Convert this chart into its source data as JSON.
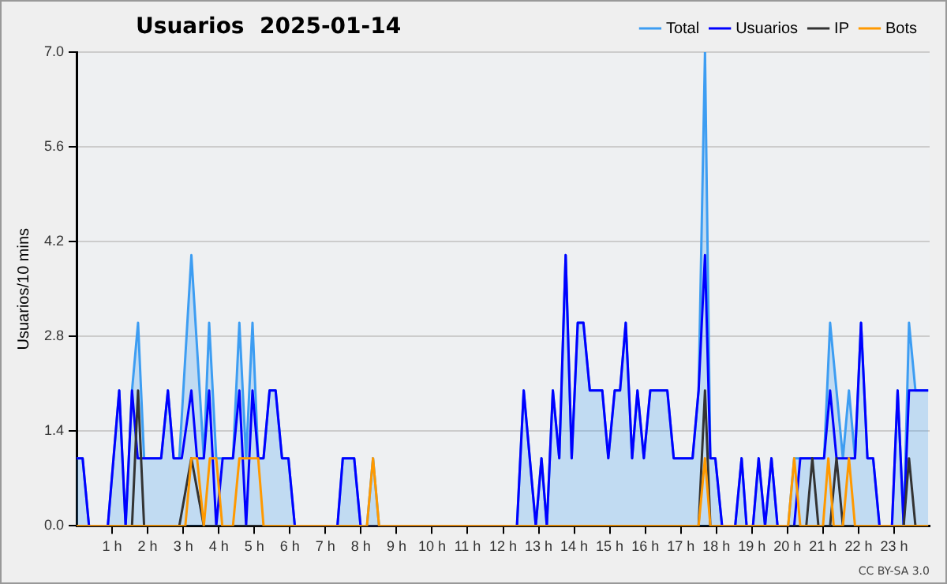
{
  "chart_data": {
    "type": "line",
    "title": "Usuarios  2025-01-14",
    "ylabel": "Usuarios/10 mins",
    "annotations": [
      "CC BY-SA 3.0"
    ],
    "xlim": [
      0,
      24
    ],
    "ylim": [
      0,
      7
    ],
    "xticks": [
      {
        "value": 1,
        "label": "1 h"
      },
      {
        "value": 2,
        "label": "2 h"
      },
      {
        "value": 3,
        "label": "3 h"
      },
      {
        "value": 4,
        "label": "4 h"
      },
      {
        "value": 5,
        "label": "5 h"
      },
      {
        "value": 6,
        "label": "6 h"
      },
      {
        "value": 7,
        "label": "7 h"
      },
      {
        "value": 8,
        "label": "8 h"
      },
      {
        "value": 9,
        "label": "9 h"
      },
      {
        "value": 10,
        "label": "10 h"
      },
      {
        "value": 11,
        "label": "11 h"
      },
      {
        "value": 12,
        "label": "12 h"
      },
      {
        "value": 13,
        "label": "13 h"
      },
      {
        "value": 14,
        "label": "14 h"
      },
      {
        "value": 15,
        "label": "15 h"
      },
      {
        "value": 16,
        "label": "16 h"
      },
      {
        "value": 17,
        "label": "17 h"
      },
      {
        "value": 18,
        "label": "18 h"
      },
      {
        "value": 19,
        "label": "19 h"
      },
      {
        "value": 20,
        "label": "20 h"
      },
      {
        "value": 21,
        "label": "21 h"
      },
      {
        "value": 22,
        "label": "22 h"
      },
      {
        "value": 23,
        "label": "23 h"
      }
    ],
    "yticks": [
      {
        "value": 0,
        "label": "0.0"
      },
      {
        "value": 1.4,
        "label": "1.4"
      },
      {
        "value": 2.8,
        "label": "2.8"
      },
      {
        "value": 4.2,
        "label": "4.2"
      },
      {
        "value": 5.6,
        "label": "5.6"
      },
      {
        "value": 7,
        "label": "7.0"
      }
    ],
    "grid": "y",
    "legend": "top right",
    "marker": "none",
    "line_style": "solid",
    "series": [
      {
        "name": "Total",
        "type": "area",
        "color": "#3d9df2",
        "x": [
          0,
          0.17,
          0.35,
          0.88,
          1.2,
          1.38,
          1.56,
          1.73,
          1.9,
          2.38,
          2.57,
          2.73,
          2.89,
          3.23,
          3.58,
          3.73,
          3.93,
          4.11,
          4.4,
          4.58,
          4.77,
          4.95,
          5.11,
          5.26,
          5.43,
          5.6,
          5.78,
          5.96,
          6.14,
          7.34,
          7.49,
          7.81,
          7.99,
          8.17,
          8.34,
          8.51,
          12.39,
          12.58,
          12.92,
          13.08,
          13.23,
          13.4,
          13.58,
          13.76,
          13.93,
          14.1,
          14.26,
          14.44,
          14.79,
          14.96,
          15.14,
          15.29,
          15.45,
          15.63,
          15.78,
          15.96,
          16.14,
          16.62,
          16.8,
          17.33,
          17.5,
          17.68,
          17.83,
          17.97,
          18.16,
          18.53,
          18.71,
          18.85,
          19.03,
          19.19,
          19.37,
          19.55,
          19.72,
          20.02,
          20.19,
          21.03,
          21.2,
          21.38,
          21.56,
          21.73,
          21.9,
          22.07,
          22.25,
          22.41,
          22.59,
          22.94,
          23.1,
          23.27,
          23.42,
          23.6,
          23.96
        ],
        "values": [
          1,
          1,
          0,
          0,
          2,
          0,
          2,
          3,
          1,
          1,
          2,
          1,
          1,
          4,
          1,
          3,
          1,
          1,
          1,
          3,
          1,
          3,
          1,
          1,
          2,
          2,
          1,
          1,
          0,
          0,
          1,
          1,
          0,
          0,
          1,
          0,
          0,
          2,
          0,
          1,
          0,
          2,
          1,
          4,
          1,
          3,
          3,
          2,
          2,
          1,
          2,
          2,
          3,
          1,
          2,
          1,
          2,
          2,
          1,
          1,
          2,
          7,
          1,
          1,
          0,
          0,
          1,
          0,
          0,
          1,
          0,
          1,
          0,
          0,
          1,
          1,
          3,
          2,
          1,
          2,
          1,
          3,
          1,
          1,
          0,
          0,
          2,
          0,
          3,
          2,
          2
        ]
      },
      {
        "name": "Usuarios",
        "color": "#0000ff",
        "x": [
          0,
          0.17,
          0.35,
          0.88,
          1.2,
          1.38,
          1.56,
          1.72,
          2.38,
          2.57,
          2.73,
          2.96,
          3.23,
          3.39,
          3.58,
          3.73,
          3.93,
          4.11,
          4.4,
          4.58,
          4.77,
          4.95,
          5.11,
          5.26,
          5.43,
          5.6,
          5.78,
          5.96,
          6.14,
          7.34,
          7.49,
          7.81,
          7.99,
          12.39,
          12.58,
          12.92,
          13.08,
          13.23,
          13.4,
          13.58,
          13.76,
          13.93,
          14.1,
          14.26,
          14.44,
          14.79,
          14.96,
          15.14,
          15.29,
          15.45,
          15.63,
          15.78,
          15.96,
          16.14,
          16.62,
          16.8,
          17.33,
          17.5,
          17.68,
          17.83,
          17.97,
          18.16,
          18.53,
          18.71,
          18.85,
          19.03,
          19.19,
          19.37,
          19.55,
          19.72,
          20.19,
          20.36,
          21.03,
          21.2,
          21.38,
          21.9,
          22.07,
          22.25,
          22.41,
          22.59,
          22.94,
          23.1,
          23.27,
          23.42,
          23.96
        ],
        "values": [
          1,
          1,
          0,
          0,
          2,
          0,
          2,
          1,
          1,
          2,
          1,
          1,
          2,
          1,
          1,
          2,
          0,
          1,
          1,
          2,
          0,
          2,
          1,
          1,
          2,
          2,
          1,
          1,
          0,
          0,
          1,
          1,
          0,
          0,
          2,
          0,
          1,
          0,
          2,
          1,
          4,
          1,
          3,
          3,
          2,
          2,
          1,
          2,
          2,
          3,
          1,
          2,
          1,
          2,
          2,
          1,
          1,
          2,
          4,
          1,
          1,
          0,
          0,
          1,
          0,
          0,
          1,
          0,
          1,
          0,
          0,
          1,
          1,
          2,
          1,
          1,
          3,
          1,
          1,
          0,
          0,
          2,
          0,
          2,
          2
        ]
      },
      {
        "name": "IP",
        "color": "#333333",
        "x": [
          0,
          1.56,
          1.73,
          1.9,
          2.89,
          3.23,
          3.58,
          17.5,
          17.68,
          17.83,
          20.53,
          20.7,
          20.87,
          21.2,
          21.38,
          21.56,
          23.27,
          23.42,
          23.6,
          23.96
        ],
        "values": [
          0,
          0,
          2,
          0,
          0,
          1,
          0,
          0,
          2,
          0,
          0,
          1,
          0,
          0,
          1,
          0,
          0,
          1,
          0,
          0
        ]
      },
      {
        "name": "Bots",
        "color": "#ff9900",
        "x": [
          0,
          3.06,
          3.23,
          3.39,
          3.58,
          3.75,
          3.93,
          4.1,
          4.4,
          4.58,
          5.11,
          5.26,
          8.17,
          8.34,
          8.51,
          17.5,
          17.68,
          17.83,
          20.02,
          20.19,
          20.36,
          21.0,
          21.15,
          21.3,
          21.56,
          21.73,
          21.9,
          23.96
        ],
        "values": [
          0,
          0,
          1,
          1,
          0,
          1,
          1,
          0,
          0,
          1,
          1,
          0,
          0,
          1,
          0,
          0,
          1,
          0,
          0,
          1,
          0,
          0,
          1,
          0,
          0,
          1,
          0,
          0
        ]
      }
    ]
  }
}
